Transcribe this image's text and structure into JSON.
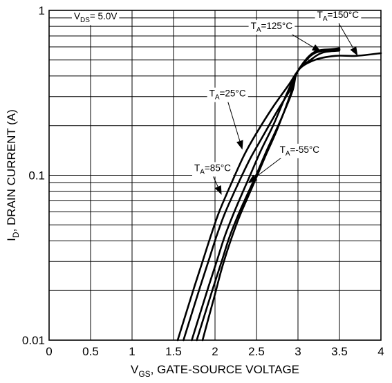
{
  "chart_data": {
    "type": "line",
    "xlabel": {
      "main": "V",
      "sub": "GS",
      "rest": ", GATE-SOURCE VOLTAGE"
    },
    "ylabel": {
      "main": "I",
      "sub": "D",
      "rest": ", DRAIN CURRENT (A)"
    },
    "xlim": [
      0,
      4
    ],
    "ylim": [
      0.01,
      1
    ],
    "yscale": "log",
    "grid": true,
    "x_ticks": [
      {
        "value": 0,
        "label": "0"
      },
      {
        "value": 0.5,
        "label": "0.5"
      },
      {
        "value": 1,
        "label": "1"
      },
      {
        "value": 1.5,
        "label": "1.5"
      },
      {
        "value": 2,
        "label": "2"
      },
      {
        "value": 2.5,
        "label": "2.5"
      },
      {
        "value": 3,
        "label": "3"
      },
      {
        "value": 3.5,
        "label": "3.5"
      },
      {
        "value": 4,
        "label": "4"
      }
    ],
    "y_ticks": [
      {
        "value": 0.01,
        "label": "0.01"
      },
      {
        "value": 0.1,
        "label": "0.1"
      },
      {
        "value": 1,
        "label": "1"
      }
    ],
    "condition": {
      "main": "V",
      "sub": "DS",
      "rest": "= 5.0V",
      "x": 0.3,
      "y": 0.88
    },
    "series": [
      {
        "label": {
          "main": "T",
          "sub": "A",
          "rest": "=85°C"
        },
        "label_at": {
          "x": 1.75,
          "y": 0.106
        },
        "arrow_to": {
          "x": 2.08,
          "y": 0.076
        },
        "x": [
          1.55,
          1.65,
          1.75,
          1.85,
          1.95,
          2.05,
          2.2,
          2.35,
          2.5,
          2.7,
          2.9,
          3.0,
          3.2,
          3.5
        ],
        "y": [
          0.01,
          0.0145,
          0.021,
          0.03,
          0.043,
          0.06,
          0.09,
          0.132,
          0.18,
          0.26,
          0.36,
          0.43,
          0.55,
          0.58
        ]
      },
      {
        "label": {
          "main": "T",
          "sub": "A",
          "rest": "=25°C"
        },
        "label_at": {
          "x": 1.93,
          "y": 0.3
        },
        "arrow_to": {
          "x": 2.33,
          "y": 0.143
        },
        "x": [
          1.62,
          1.72,
          1.82,
          1.92,
          2.02,
          2.12,
          2.27,
          2.42,
          2.57,
          2.75,
          2.92,
          3.0,
          3.2,
          3.5
        ],
        "y": [
          0.01,
          0.0145,
          0.021,
          0.03,
          0.043,
          0.059,
          0.087,
          0.125,
          0.17,
          0.245,
          0.34,
          0.43,
          0.56,
          0.58
        ]
      },
      {
        "label": {
          "main": "T",
          "sub": "A",
          "rest": "=-55°C"
        },
        "label_at": {
          "x": 2.78,
          "y": 0.137
        },
        "arrow_to": {
          "x": 2.4,
          "y": 0.09
        },
        "x": [
          1.85,
          1.92,
          2.0,
          2.08,
          2.18,
          2.3,
          2.45,
          2.6,
          2.75,
          2.9,
          3.0,
          3.2,
          3.5
        ],
        "y": [
          0.01,
          0.0135,
          0.019,
          0.027,
          0.039,
          0.057,
          0.085,
          0.128,
          0.19,
          0.3,
          0.43,
          0.55,
          0.59
        ]
      },
      {
        "label": {
          "main": "T",
          "sub": "A",
          "rest": "=125°C"
        },
        "label_at": {
          "x": 2.43,
          "y": 0.77
        },
        "arrow_to": {
          "x": 3.28,
          "y": 0.56
        },
        "x": [
          1.72,
          1.82,
          1.92,
          2.02,
          2.12,
          2.25,
          2.4,
          2.55,
          2.7,
          2.85,
          3.0,
          3.15,
          3.3,
          3.5
        ],
        "y": [
          0.01,
          0.0145,
          0.021,
          0.03,
          0.043,
          0.063,
          0.094,
          0.14,
          0.2,
          0.3,
          0.43,
          0.5,
          0.555,
          0.57
        ]
      },
      {
        "label": {
          "main": "T",
          "sub": "A",
          "rest": "=150°C"
        },
        "label_at": {
          "x": 3.23,
          "y": 0.9
        },
        "arrow_to": {
          "x": 3.72,
          "y": 0.53
        },
        "x": [
          1.78,
          1.88,
          1.98,
          2.08,
          2.18,
          2.32,
          2.48,
          2.62,
          2.78,
          2.93,
          3.0,
          3.2,
          3.45,
          3.7,
          4.0
        ],
        "y": [
          0.01,
          0.0145,
          0.021,
          0.03,
          0.043,
          0.064,
          0.096,
          0.14,
          0.21,
          0.32,
          0.43,
          0.5,
          0.53,
          0.53,
          0.55
        ]
      }
    ]
  }
}
